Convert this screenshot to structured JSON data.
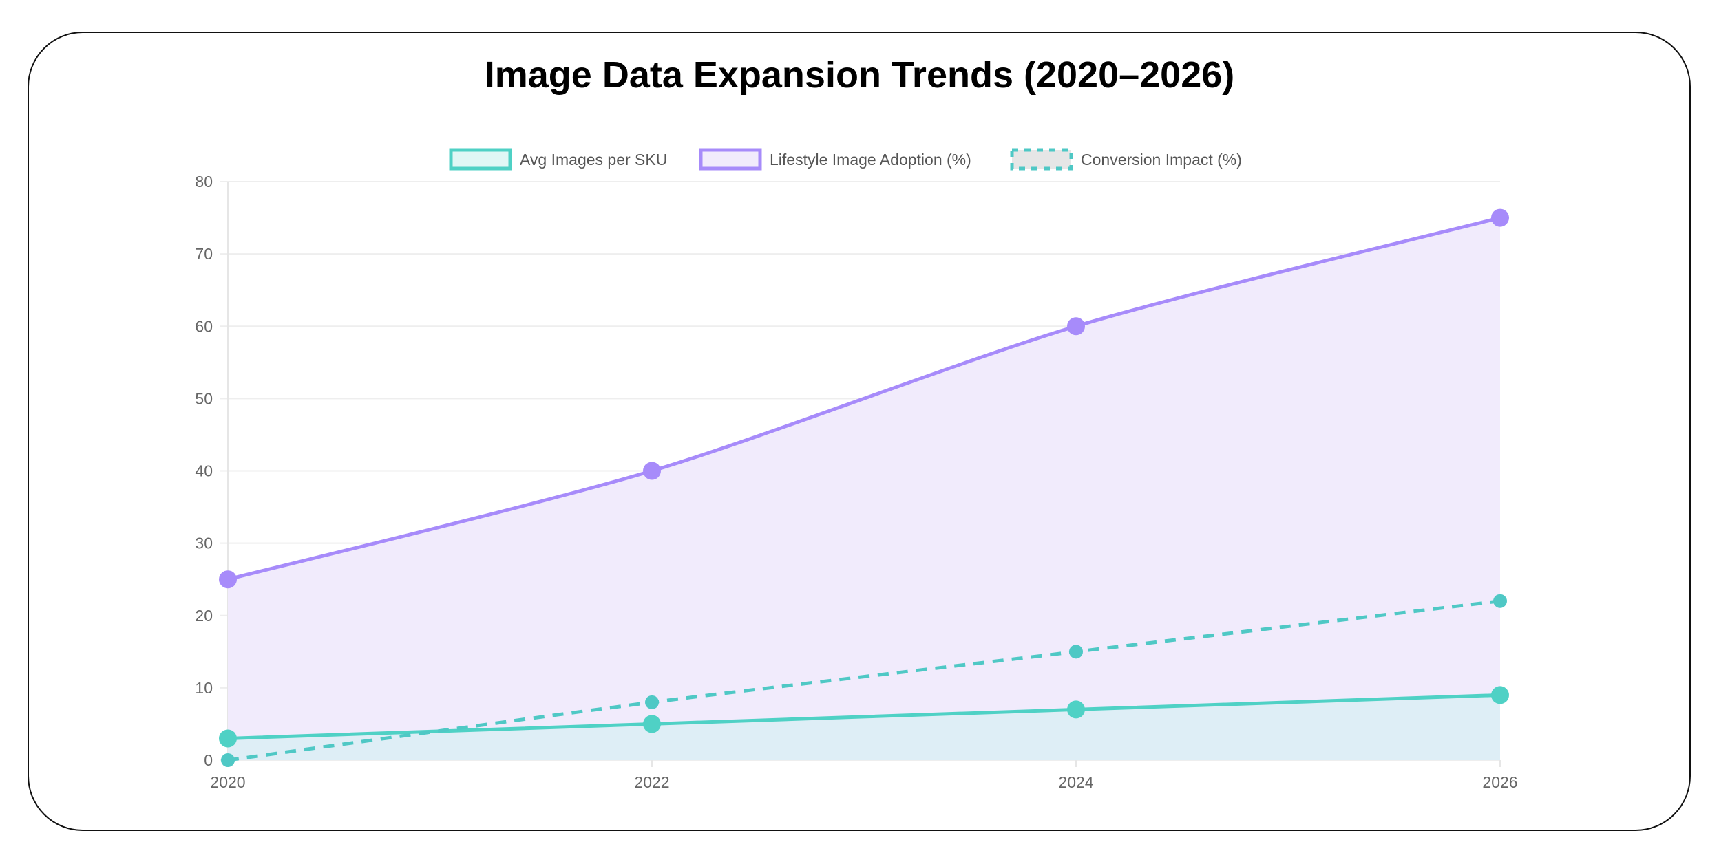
{
  "chart_data": {
    "type": "line",
    "title": "Image Data Expansion Trends (2020–2026)",
    "x": [
      "2020",
      "2022",
      "2024",
      "2026"
    ],
    "ylim": [
      0,
      80
    ],
    "yticks": [
      0,
      10,
      20,
      30,
      40,
      50,
      60,
      70,
      80
    ],
    "grid": true,
    "legend_placement": "top",
    "series": [
      {
        "name": "Avg Images per SKU",
        "values": [
          3,
          5,
          7,
          9
        ],
        "color": "#4fd1c5",
        "fill": "#dbeef5",
        "dashed": false,
        "filled": true
      },
      {
        "name": "Lifestyle Image Adoption (%)",
        "values": [
          25,
          40,
          60,
          75
        ],
        "color": "#a78bfa",
        "fill": "#f1ebfc",
        "dashed": false,
        "filled": true
      },
      {
        "name": "Conversion Impact (%)",
        "values": [
          0,
          8,
          15,
          22
        ],
        "color": "#4fc8c5",
        "fill": "#e6e6e6",
        "dashed": true,
        "filled": false
      }
    ]
  }
}
